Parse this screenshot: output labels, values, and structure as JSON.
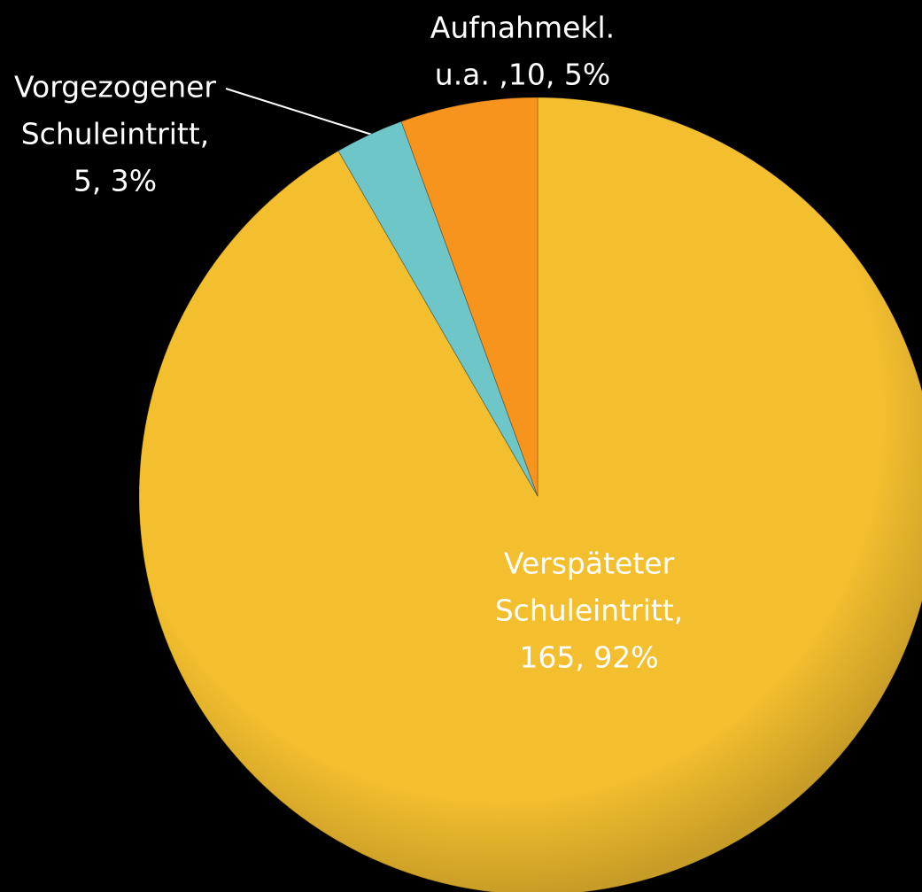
{
  "chart_data": {
    "type": "pie",
    "values": [
      165,
      5,
      10
    ],
    "labels": [
      [
        "Verspäteter",
        "Schuleintritt,",
        "165, 92%"
      ],
      [
        "Vorgezogener",
        "Schuleintritt,",
        "5, 3%"
      ],
      [
        "Aufnahmekl.",
        "u.a. ,10, 5%"
      ]
    ],
    "colors": [
      "#f4bf2f",
      "#6fc6c9",
      "#f7941d"
    ]
  }
}
